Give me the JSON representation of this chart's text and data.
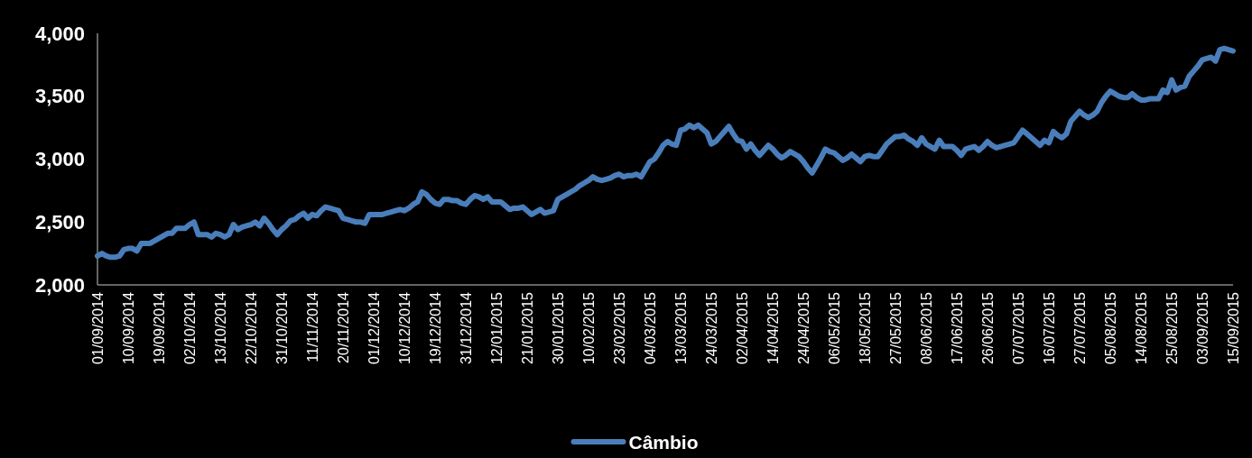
{
  "chart_data": {
    "type": "line",
    "categories": [
      "01/09/2014",
      null,
      null,
      null,
      null,
      null,
      null,
      "10/09/2014",
      null,
      null,
      null,
      null,
      null,
      null,
      "19/09/2014",
      null,
      null,
      null,
      null,
      null,
      null,
      "02/10/2014",
      null,
      null,
      null,
      null,
      null,
      null,
      "13/10/2014",
      null,
      null,
      null,
      null,
      null,
      null,
      "22/10/2014",
      null,
      null,
      null,
      null,
      null,
      null,
      "31/10/2014",
      null,
      null,
      null,
      null,
      null,
      null,
      "11/11/2014",
      null,
      null,
      null,
      null,
      null,
      null,
      "20/11/2014",
      null,
      null,
      null,
      null,
      null,
      null,
      "01/12/2014",
      null,
      null,
      null,
      null,
      null,
      null,
      "10/12/2014",
      null,
      null,
      null,
      null,
      null,
      null,
      "19/12/2014",
      null,
      null,
      null,
      null,
      null,
      null,
      "31/12/2014",
      null,
      null,
      null,
      null,
      null,
      null,
      "12/01/2015",
      null,
      null,
      null,
      null,
      null,
      null,
      "21/01/2015",
      null,
      null,
      null,
      null,
      null,
      null,
      "30/01/2015",
      null,
      null,
      null,
      null,
      null,
      null,
      "10/02/2015",
      null,
      null,
      null,
      null,
      null,
      null,
      "23/02/2015",
      null,
      null,
      null,
      null,
      null,
      null,
      "04/03/2015",
      null,
      null,
      null,
      null,
      null,
      null,
      "13/03/2015",
      null,
      null,
      null,
      null,
      null,
      null,
      "24/03/2015",
      null,
      null,
      null,
      null,
      null,
      null,
      "02/04/2015",
      null,
      null,
      null,
      null,
      null,
      null,
      "14/04/2015",
      null,
      null,
      null,
      null,
      null,
      null,
      "24/04/2015",
      null,
      null,
      null,
      null,
      null,
      null,
      "06/05/2015",
      null,
      null,
      null,
      null,
      null,
      null,
      "18/05/2015",
      null,
      null,
      null,
      null,
      null,
      null,
      "27/05/2015",
      null,
      null,
      null,
      null,
      null,
      null,
      "08/06/2015",
      null,
      null,
      null,
      null,
      null,
      null,
      "17/06/2015",
      null,
      null,
      null,
      null,
      null,
      null,
      "26/06/2015",
      null,
      null,
      null,
      null,
      null,
      null,
      "07/07/2015",
      null,
      null,
      null,
      null,
      null,
      null,
      "16/07/2015",
      null,
      null,
      null,
      null,
      null,
      null,
      "27/07/2015",
      null,
      null,
      null,
      null,
      null,
      null,
      "05/08/2015",
      null,
      null,
      null,
      null,
      null,
      null,
      "14/08/2015",
      null,
      null,
      null,
      null,
      null,
      null,
      "25/08/2015",
      null,
      null,
      null,
      null,
      null,
      null,
      "03/09/2015",
      null,
      null,
      null,
      null,
      null,
      null,
      "15/09/2015"
    ],
    "series": [
      {
        "name": "Câmbio",
        "color": "#4a7ebb",
        "values": [
          2230,
          2250,
          2230,
          2220,
          2220,
          2230,
          2280,
          2290,
          2290,
          2270,
          2330,
          2330,
          2330,
          2350,
          2370,
          2390,
          2410,
          2410,
          2450,
          2450,
          2450,
          2480,
          2500,
          2400,
          2400,
          2400,
          2380,
          2410,
          2400,
          2380,
          2400,
          2480,
          2440,
          2460,
          2470,
          2480,
          2500,
          2470,
          2530,
          2490,
          2440,
          2400,
          2440,
          2470,
          2510,
          2520,
          2550,
          2570,
          2530,
          2560,
          2550,
          2590,
          2620,
          2610,
          2600,
          2590,
          2530,
          2520,
          2510,
          2500,
          2500,
          2490,
          2560,
          2560,
          2560,
          2560,
          2570,
          2580,
          2590,
          2600,
          2590,
          2610,
          2640,
          2660,
          2740,
          2720,
          2680,
          2650,
          2640,
          2680,
          2680,
          2670,
          2670,
          2650,
          2640,
          2680,
          2710,
          2700,
          2680,
          2700,
          2660,
          2660,
          2660,
          2630,
          2600,
          2610,
          2610,
          2620,
          2590,
          2560,
          2580,
          2600,
          2570,
          2580,
          2590,
          2680,
          2700,
          2720,
          2740,
          2760,
          2790,
          2810,
          2830,
          2860,
          2840,
          2830,
          2840,
          2850,
          2870,
          2880,
          2860,
          2870,
          2870,
          2880,
          2860,
          2920,
          2980,
          3000,
          3050,
          3110,
          3140,
          3120,
          3110,
          3230,
          3240,
          3270,
          3250,
          3270,
          3240,
          3210,
          3120,
          3140,
          3180,
          3220,
          3260,
          3200,
          3150,
          3140,
          3080,
          3120,
          3070,
          3030,
          3070,
          3110,
          3080,
          3040,
          3010,
          3030,
          3060,
          3040,
          3020,
          2980,
          2930,
          2890,
          2950,
          3010,
          3080,
          3060,
          3050,
          3020,
          2990,
          3010,
          3040,
          3010,
          2980,
          3020,
          3030,
          3020,
          3020,
          3070,
          3120,
          3150,
          3180,
          3180,
          3190,
          3160,
          3140,
          3110,
          3170,
          3120,
          3100,
          3080,
          3150,
          3100,
          3100,
          3100,
          3070,
          3030,
          3080,
          3090,
          3100,
          3070,
          3100,
          3140,
          3110,
          3090,
          3100,
          3110,
          3120,
          3130,
          3180,
          3230,
          3200,
          3170,
          3140,
          3110,
          3150,
          3130,
          3220,
          3190,
          3170,
          3200,
          3300,
          3340,
          3380,
          3350,
          3330,
          3350,
          3380,
          3450,
          3500,
          3540,
          3520,
          3500,
          3490,
          3490,
          3520,
          3490,
          3470,
          3470,
          3480,
          3480,
          3480,
          3550,
          3530,
          3630,
          3550,
          3570,
          3580,
          3660,
          3700,
          3740,
          3790,
          3800,
          3810,
          3780,
          3870,
          3880,
          3870,
          3860
        ]
      }
    ],
    "ylim": [
      2000,
      4000
    ],
    "yticks": [
      {
        "value": 2000,
        "label": "2,000"
      },
      {
        "value": 2500,
        "label": "2,500"
      },
      {
        "value": 3000,
        "label": "3,000"
      },
      {
        "value": 3500,
        "label": "3,500"
      },
      {
        "value": 4000,
        "label": "4,000"
      }
    ],
    "legend": "bottom"
  }
}
